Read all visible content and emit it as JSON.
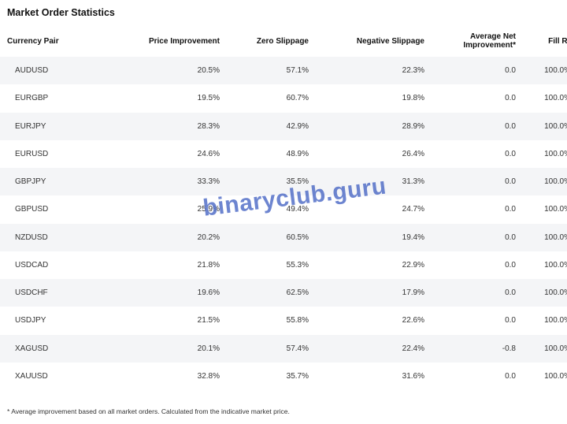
{
  "title": "Market Order Statistics",
  "headers": [
    "Currency Pair",
    "Price Improvement",
    "Zero Slippage",
    "Negative Slippage",
    "Average Net Improvement*",
    "Fill Rate"
  ],
  "rows": [
    [
      "AUDUSD",
      "20.5%",
      "57.1%",
      "22.3%",
      "0.0",
      "100.0%"
    ],
    [
      "EURGBP",
      "19.5%",
      "60.7%",
      "19.8%",
      "0.0",
      "100.0%"
    ],
    [
      "EURJPY",
      "28.3%",
      "42.9%",
      "28.9%",
      "0.0",
      "100.0%"
    ],
    [
      "EURUSD",
      "24.6%",
      "48.9%",
      "26.4%",
      "0.0",
      "100.0%"
    ],
    [
      "GBPJPY",
      "33.3%",
      "35.5%",
      "31.3%",
      "0.0",
      "100.0%"
    ],
    [
      "GBPUSD",
      "25.9%",
      "49.4%",
      "24.7%",
      "0.0",
      "100.0%"
    ],
    [
      "NZDUSD",
      "20.2%",
      "60.5%",
      "19.4%",
      "0.0",
      "100.0%"
    ],
    [
      "USDCAD",
      "21.8%",
      "55.3%",
      "22.9%",
      "0.0",
      "100.0%"
    ],
    [
      "USDCHF",
      "19.6%",
      "62.5%",
      "17.9%",
      "0.0",
      "100.0%"
    ],
    [
      "USDJPY",
      "21.5%",
      "55.8%",
      "22.6%",
      "0.0",
      "100.0%"
    ],
    [
      "XAGUSD",
      "20.1%",
      "57.4%",
      "22.4%",
      "-0.8",
      "100.0%"
    ],
    [
      "XAUUSD",
      "32.8%",
      "35.7%",
      "31.6%",
      "0.0",
      "100.0%"
    ]
  ],
  "footnote": "* Average improvement based on all market orders. Calculated from the indicative market price.",
  "watermark": "binaryclub.guru"
}
